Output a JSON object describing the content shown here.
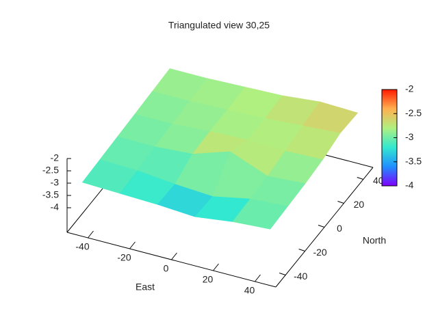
{
  "chart_data": {
    "type": "surface",
    "title": "Triangulated view 30,25",
    "xlabel": "East",
    "ylabel": "North",
    "x": [
      -45,
      -27,
      -9,
      9,
      27,
      45
    ],
    "y": [
      -45,
      -27,
      -9,
      9,
      27,
      45
    ],
    "z": [
      [
        -3.1,
        -3.15,
        -3.2,
        -3.3,
        -3.1,
        -3.0
      ],
      [
        -3.05,
        -3.1,
        -3.25,
        -3.35,
        -3.05,
        -2.95
      ],
      [
        -3.0,
        -3.0,
        -2.9,
        -2.4,
        -3.0,
        -2.9
      ],
      [
        -2.95,
        -2.95,
        -2.85,
        -2.8,
        -2.85,
        -2.8
      ],
      [
        -2.9,
        -2.9,
        -2.85,
        -2.8,
        -2.7,
        -2.6
      ],
      [
        -2.85,
        -2.85,
        -2.8,
        -2.75,
        -2.6,
        -2.65
      ]
    ],
    "xlim": [
      -50,
      50
    ],
    "xticks": [
      -40,
      -20,
      0,
      20,
      40
    ],
    "ylim": [
      -50,
      50
    ],
    "yticks": [
      -40,
      -20,
      0,
      20,
      40
    ],
    "zlim": [
      -5,
      -2
    ],
    "zticks": [
      -2,
      -2.5,
      -3,
      -3.5,
      -4
    ],
    "cblim": [
      -4,
      -2
    ],
    "cbticks": [
      -2,
      -2.5,
      -3,
      -3.5,
      -4
    ],
    "palette": [
      "#7f00ff",
      "#1f8fff",
      "#33e8d0",
      "#b0f080",
      "#ffb050",
      "#ff1a00"
    ]
  }
}
